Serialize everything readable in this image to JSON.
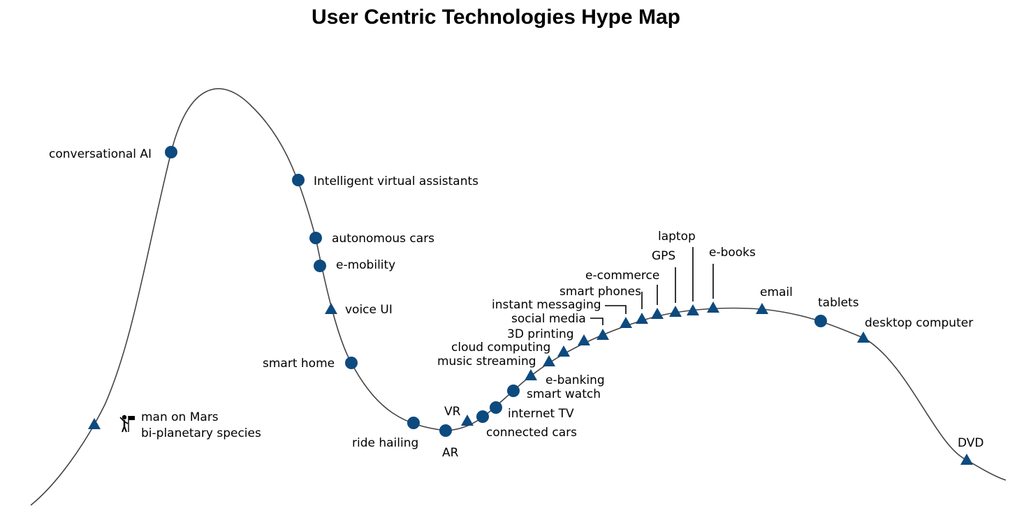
{
  "title": "User Centric Technologies Hype Map",
  "colors": {
    "marker": "#0d4a7e",
    "curve": "#444444"
  },
  "legend_note": "markers: circle and triangle; man-on-Mars uses a person-with-flag icon",
  "technologies": [
    {
      "label": "conversational AI",
      "marker": "circle"
    },
    {
      "label": "Intelligent virtual assistants",
      "marker": "circle"
    },
    {
      "label": "autonomous cars",
      "marker": "circle"
    },
    {
      "label": "e-mobility",
      "marker": "circle"
    },
    {
      "label": "voice UI",
      "marker": "triangle"
    },
    {
      "label": "smart home",
      "marker": "circle"
    },
    {
      "label": "ride hailing",
      "marker": "circle"
    },
    {
      "label": "AR",
      "marker": "circle"
    },
    {
      "label": "VR",
      "marker": "triangle"
    },
    {
      "label": "connected cars",
      "marker": "circle"
    },
    {
      "label": "internet TV",
      "marker": "circle"
    },
    {
      "label": "smart watch",
      "marker": "circle"
    },
    {
      "label": "e-banking",
      "marker": "triangle"
    },
    {
      "label": "music streaming",
      "marker": "triangle"
    },
    {
      "label": "cloud computing",
      "marker": "triangle"
    },
    {
      "label": "3D printing",
      "marker": "triangle"
    },
    {
      "label": "social media",
      "marker": "triangle"
    },
    {
      "label": "instant messaging",
      "marker": "triangle"
    },
    {
      "label": "smart phones",
      "marker": "triangle"
    },
    {
      "label": "e-commerce",
      "marker": "triangle"
    },
    {
      "label": "GPS",
      "marker": "triangle"
    },
    {
      "label": "laptop",
      "marker": "triangle"
    },
    {
      "label": "e-books",
      "marker": "triangle"
    },
    {
      "label": "email",
      "marker": "triangle"
    },
    {
      "label": "tablets",
      "marker": "circle"
    },
    {
      "label": "desktop computer",
      "marker": "triangle"
    },
    {
      "label": "DVD",
      "marker": "triangle"
    }
  ],
  "mars": {
    "line1": "man on Mars",
    "line2": "bi-planetary species",
    "marker": "triangle",
    "icon": "astronaut-flag-icon"
  }
}
